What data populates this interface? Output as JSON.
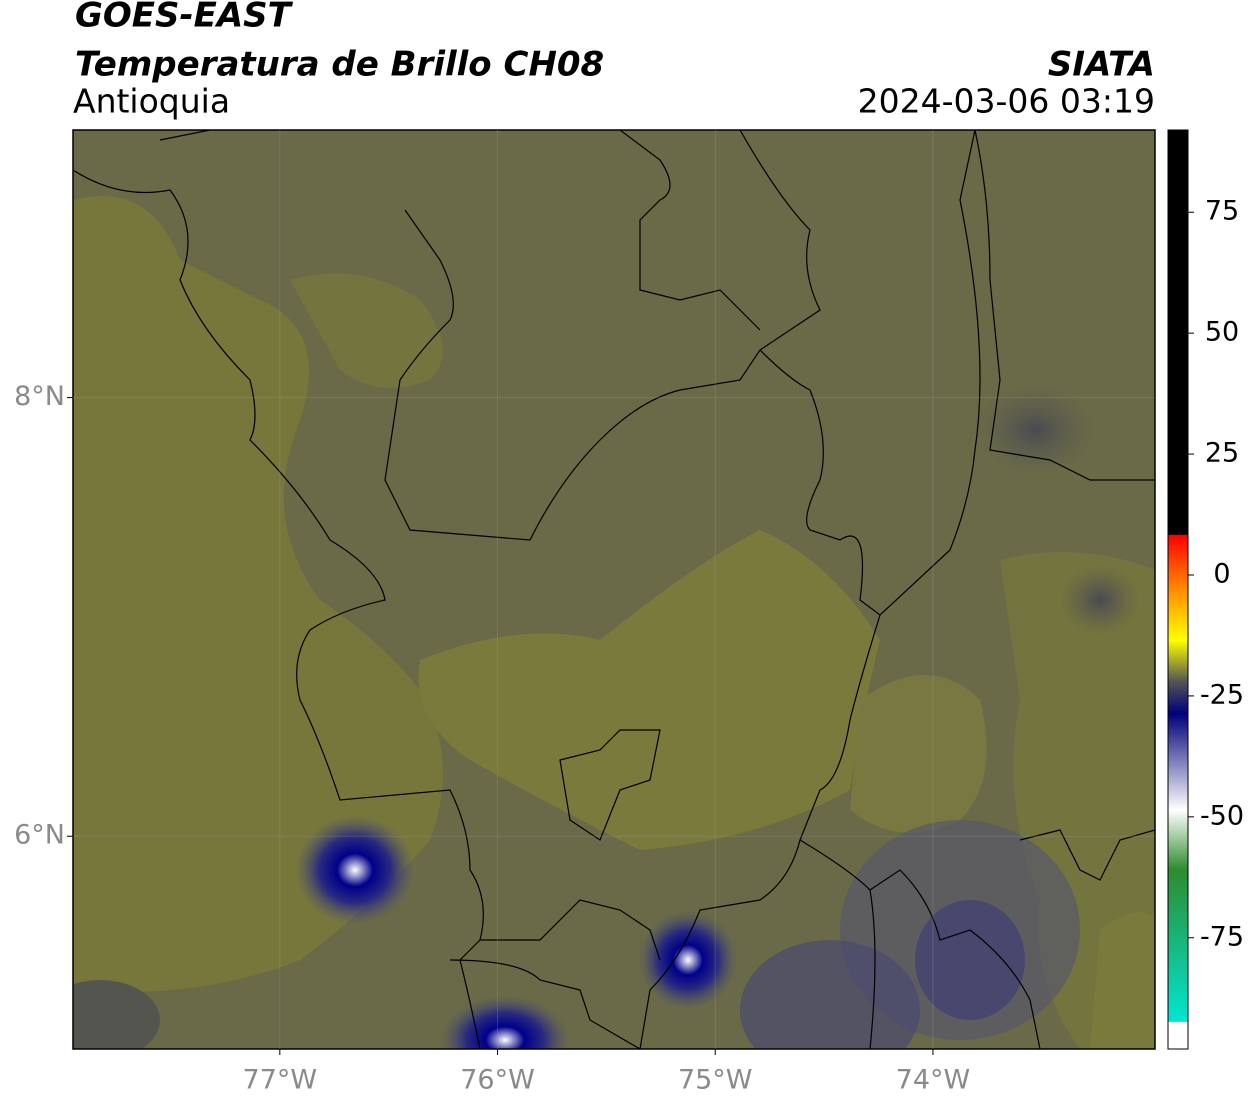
{
  "header": {
    "title": "GOES-EAST",
    "subtitle": "Temperatura de Brillo CH08",
    "region": "Antioquia",
    "source": "SIATA",
    "timestamp": "2024-03-06 03:19"
  },
  "map": {
    "xlim": [
      -77.95,
      -72.98
    ],
    "ylim": [
      5.03,
      9.22
    ],
    "xticks": [
      {
        "value": -77,
        "label": "77°W"
      },
      {
        "value": -76,
        "label": "76°W"
      },
      {
        "value": -75,
        "label": "75°W"
      },
      {
        "value": -74,
        "label": "74°W"
      }
    ],
    "yticks": [
      {
        "value": 8,
        "label": "8°N"
      },
      {
        "value": 6,
        "label": "6°N"
      }
    ]
  },
  "colorbar": {
    "lim": [
      -98,
      92
    ],
    "ticks": [
      75,
      50,
      25,
      0,
      -25,
      -50,
      -75
    ]
  }
}
